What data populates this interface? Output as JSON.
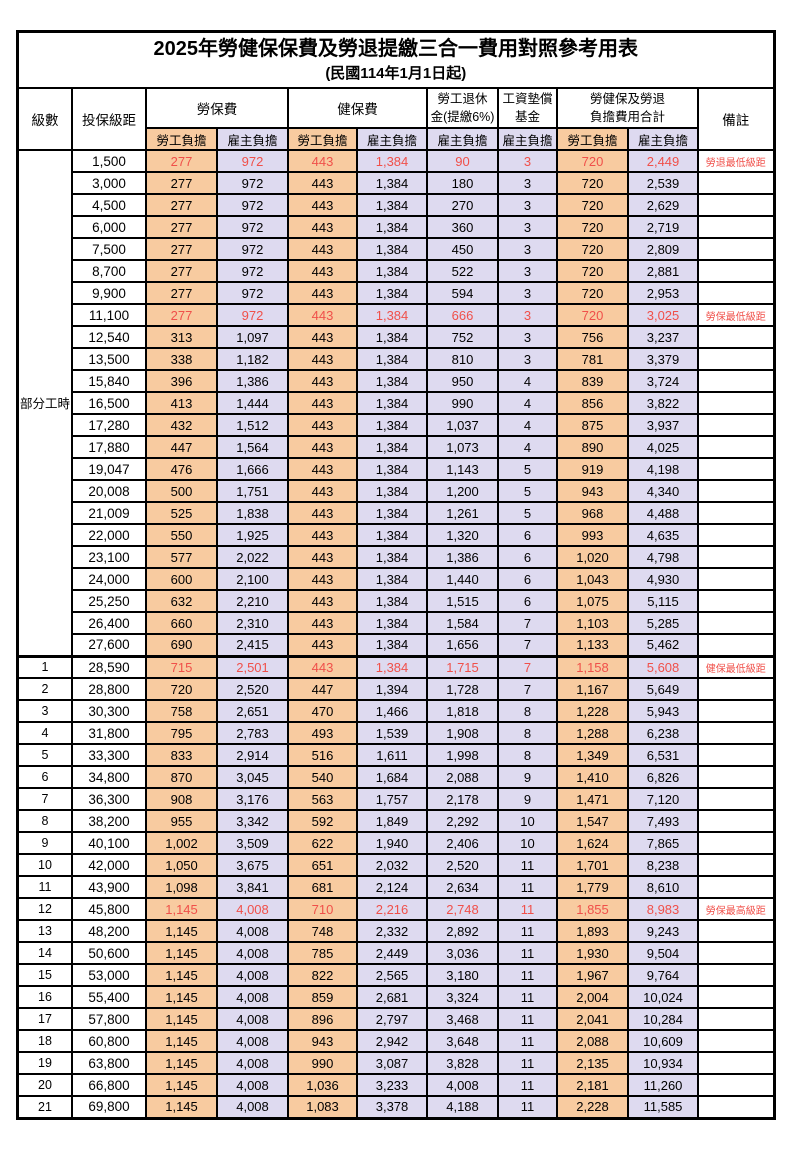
{
  "title": "2025年勞健保保費及勞退提繳三合一費用對照參考用表",
  "subtitle": "(民國114年1月1日起)",
  "colors": {
    "employee_bg": "#f8cba0",
    "employer_bg": "#dedaf0",
    "highlight_red": "#f0504a"
  },
  "header": {
    "level": "級數",
    "bracket": "投保級距",
    "labor_insurance": "勞保費",
    "health_insurance": "健保費",
    "pension_line1": "勞工退休",
    "pension_line2": "金(提繳6%)",
    "wage_fund_line1": "工資墊償",
    "wage_fund_line2": "基金",
    "total_line1": "勞健保及勞退",
    "total_line2": "負擔費用合計",
    "notes": "備註",
    "employee": "勞工負擔",
    "employer": "雇主負擔"
  },
  "part_time": {
    "label": "部分工時",
    "rowspan": 23
  },
  "row_fields": [
    "bracket",
    "li_emp",
    "li_er",
    "hi_emp",
    "hi_er",
    "pension",
    "fund",
    "tot_emp",
    "tot_er",
    "note"
  ],
  "field_classes": {
    "bracket": "bracket",
    "li_emp": "emp val",
    "li_er": "er val",
    "hi_emp": "emp val",
    "hi_er": "er val",
    "pension": "er val",
    "fund": "er val",
    "tot_emp": "emp val",
    "tot_er": "er val",
    "note": "note"
  },
  "rows": [
    {
      "level": "",
      "bracket": "1,500",
      "li_emp": "277",
      "li_er": "972",
      "hi_emp": "443",
      "hi_er": "1,384",
      "pension": "90",
      "fund": "3",
      "tot_emp": "720",
      "tot_er": "2,449",
      "note": "勞退最低級距",
      "red": true
    },
    {
      "level": "",
      "bracket": "3,000",
      "li_emp": "277",
      "li_er": "972",
      "hi_emp": "443",
      "hi_er": "1,384",
      "pension": "180",
      "fund": "3",
      "tot_emp": "720",
      "tot_er": "2,539",
      "note": ""
    },
    {
      "level": "",
      "bracket": "4,500",
      "li_emp": "277",
      "li_er": "972",
      "hi_emp": "443",
      "hi_er": "1,384",
      "pension": "270",
      "fund": "3",
      "tot_emp": "720",
      "tot_er": "2,629",
      "note": ""
    },
    {
      "level": "",
      "bracket": "6,000",
      "li_emp": "277",
      "li_er": "972",
      "hi_emp": "443",
      "hi_er": "1,384",
      "pension": "360",
      "fund": "3",
      "tot_emp": "720",
      "tot_er": "2,719",
      "note": ""
    },
    {
      "level": "",
      "bracket": "7,500",
      "li_emp": "277",
      "li_er": "972",
      "hi_emp": "443",
      "hi_er": "1,384",
      "pension": "450",
      "fund": "3",
      "tot_emp": "720",
      "tot_er": "2,809",
      "note": ""
    },
    {
      "level": "",
      "bracket": "8,700",
      "li_emp": "277",
      "li_er": "972",
      "hi_emp": "443",
      "hi_er": "1,384",
      "pension": "522",
      "fund": "3",
      "tot_emp": "720",
      "tot_er": "2,881",
      "note": ""
    },
    {
      "level": "",
      "bracket": "9,900",
      "li_emp": "277",
      "li_er": "972",
      "hi_emp": "443",
      "hi_er": "1,384",
      "pension": "594",
      "fund": "3",
      "tot_emp": "720",
      "tot_er": "2,953",
      "note": ""
    },
    {
      "level": "",
      "bracket": "11,100",
      "li_emp": "277",
      "li_er": "972",
      "hi_emp": "443",
      "hi_er": "1,384",
      "pension": "666",
      "fund": "3",
      "tot_emp": "720",
      "tot_er": "3,025",
      "note": "勞保最低級距",
      "red": true
    },
    {
      "level": "",
      "bracket": "12,540",
      "li_emp": "313",
      "li_er": "1,097",
      "hi_emp": "443",
      "hi_er": "1,384",
      "pension": "752",
      "fund": "3",
      "tot_emp": "756",
      "tot_er": "3,237",
      "note": ""
    },
    {
      "level": "",
      "bracket": "13,500",
      "li_emp": "338",
      "li_er": "1,182",
      "hi_emp": "443",
      "hi_er": "1,384",
      "pension": "810",
      "fund": "3",
      "tot_emp": "781",
      "tot_er": "3,379",
      "note": ""
    },
    {
      "level": "",
      "bracket": "15,840",
      "li_emp": "396",
      "li_er": "1,386",
      "hi_emp": "443",
      "hi_er": "1,384",
      "pension": "950",
      "fund": "4",
      "tot_emp": "839",
      "tot_er": "3,724",
      "note": ""
    },
    {
      "level": "",
      "bracket": "16,500",
      "li_emp": "413",
      "li_er": "1,444",
      "hi_emp": "443",
      "hi_er": "1,384",
      "pension": "990",
      "fund": "4",
      "tot_emp": "856",
      "tot_er": "3,822",
      "note": ""
    },
    {
      "level": "",
      "bracket": "17,280",
      "li_emp": "432",
      "li_er": "1,512",
      "hi_emp": "443",
      "hi_er": "1,384",
      "pension": "1,037",
      "fund": "4",
      "tot_emp": "875",
      "tot_er": "3,937",
      "note": ""
    },
    {
      "level": "",
      "bracket": "17,880",
      "li_emp": "447",
      "li_er": "1,564",
      "hi_emp": "443",
      "hi_er": "1,384",
      "pension": "1,073",
      "fund": "4",
      "tot_emp": "890",
      "tot_er": "4,025",
      "note": ""
    },
    {
      "level": "",
      "bracket": "19,047",
      "li_emp": "476",
      "li_er": "1,666",
      "hi_emp": "443",
      "hi_er": "1,384",
      "pension": "1,143",
      "fund": "5",
      "tot_emp": "919",
      "tot_er": "4,198",
      "note": ""
    },
    {
      "level": "",
      "bracket": "20,008",
      "li_emp": "500",
      "li_er": "1,751",
      "hi_emp": "443",
      "hi_er": "1,384",
      "pension": "1,200",
      "fund": "5",
      "tot_emp": "943",
      "tot_er": "4,340",
      "note": ""
    },
    {
      "level": "",
      "bracket": "21,009",
      "li_emp": "525",
      "li_er": "1,838",
      "hi_emp": "443",
      "hi_er": "1,384",
      "pension": "1,261",
      "fund": "5",
      "tot_emp": "968",
      "tot_er": "4,488",
      "note": ""
    },
    {
      "level": "",
      "bracket": "22,000",
      "li_emp": "550",
      "li_er": "1,925",
      "hi_emp": "443",
      "hi_er": "1,384",
      "pension": "1,320",
      "fund": "6",
      "tot_emp": "993",
      "tot_er": "4,635",
      "note": ""
    },
    {
      "level": "",
      "bracket": "23,100",
      "li_emp": "577",
      "li_er": "2,022",
      "hi_emp": "443",
      "hi_er": "1,384",
      "pension": "1,386",
      "fund": "6",
      "tot_emp": "1,020",
      "tot_er": "4,798",
      "note": ""
    },
    {
      "level": "",
      "bracket": "24,000",
      "li_emp": "600",
      "li_er": "2,100",
      "hi_emp": "443",
      "hi_er": "1,384",
      "pension": "1,440",
      "fund": "6",
      "tot_emp": "1,043",
      "tot_er": "4,930",
      "note": ""
    },
    {
      "level": "",
      "bracket": "25,250",
      "li_emp": "632",
      "li_er": "2,210",
      "hi_emp": "443",
      "hi_er": "1,384",
      "pension": "1,515",
      "fund": "6",
      "tot_emp": "1,075",
      "tot_er": "5,115",
      "note": ""
    },
    {
      "level": "",
      "bracket": "26,400",
      "li_emp": "660",
      "li_er": "2,310",
      "hi_emp": "443",
      "hi_er": "1,384",
      "pension": "1,584",
      "fund": "7",
      "tot_emp": "1,103",
      "tot_er": "5,285",
      "note": ""
    },
    {
      "level": "",
      "bracket": "27,600",
      "li_emp": "690",
      "li_er": "2,415",
      "hi_emp": "443",
      "hi_er": "1,384",
      "pension": "1,656",
      "fund": "7",
      "tot_emp": "1,133",
      "tot_er": "5,462",
      "note": ""
    },
    {
      "level": "1",
      "bracket": "28,590",
      "li_emp": "715",
      "li_er": "2,501",
      "hi_emp": "443",
      "hi_er": "1,384",
      "pension": "1,715",
      "fund": "7",
      "tot_emp": "1,158",
      "tot_er": "5,608",
      "note": "健保最低級距",
      "red": true,
      "sep": true
    },
    {
      "level": "2",
      "bracket": "28,800",
      "li_emp": "720",
      "li_er": "2,520",
      "hi_emp": "447",
      "hi_er": "1,394",
      "pension": "1,728",
      "fund": "7",
      "tot_emp": "1,167",
      "tot_er": "5,649",
      "note": ""
    },
    {
      "level": "3",
      "bracket": "30,300",
      "li_emp": "758",
      "li_er": "2,651",
      "hi_emp": "470",
      "hi_er": "1,466",
      "pension": "1,818",
      "fund": "8",
      "tot_emp": "1,228",
      "tot_er": "5,943",
      "note": ""
    },
    {
      "level": "4",
      "bracket": "31,800",
      "li_emp": "795",
      "li_er": "2,783",
      "hi_emp": "493",
      "hi_er": "1,539",
      "pension": "1,908",
      "fund": "8",
      "tot_emp": "1,288",
      "tot_er": "6,238",
      "note": ""
    },
    {
      "level": "5",
      "bracket": "33,300",
      "li_emp": "833",
      "li_er": "2,914",
      "hi_emp": "516",
      "hi_er": "1,611",
      "pension": "1,998",
      "fund": "8",
      "tot_emp": "1,349",
      "tot_er": "6,531",
      "note": ""
    },
    {
      "level": "6",
      "bracket": "34,800",
      "li_emp": "870",
      "li_er": "3,045",
      "hi_emp": "540",
      "hi_er": "1,684",
      "pension": "2,088",
      "fund": "9",
      "tot_emp": "1,410",
      "tot_er": "6,826",
      "note": ""
    },
    {
      "level": "7",
      "bracket": "36,300",
      "li_emp": "908",
      "li_er": "3,176",
      "hi_emp": "563",
      "hi_er": "1,757",
      "pension": "2,178",
      "fund": "9",
      "tot_emp": "1,471",
      "tot_er": "7,120",
      "note": ""
    },
    {
      "level": "8",
      "bracket": "38,200",
      "li_emp": "955",
      "li_er": "3,342",
      "hi_emp": "592",
      "hi_er": "1,849",
      "pension": "2,292",
      "fund": "10",
      "tot_emp": "1,547",
      "tot_er": "7,493",
      "note": ""
    },
    {
      "level": "9",
      "bracket": "40,100",
      "li_emp": "1,002",
      "li_er": "3,509",
      "hi_emp": "622",
      "hi_er": "1,940",
      "pension": "2,406",
      "fund": "10",
      "tot_emp": "1,624",
      "tot_er": "7,865",
      "note": ""
    },
    {
      "level": "10",
      "bracket": "42,000",
      "li_emp": "1,050",
      "li_er": "3,675",
      "hi_emp": "651",
      "hi_er": "2,032",
      "pension": "2,520",
      "fund": "11",
      "tot_emp": "1,701",
      "tot_er": "8,238",
      "note": ""
    },
    {
      "level": "11",
      "bracket": "43,900",
      "li_emp": "1,098",
      "li_er": "3,841",
      "hi_emp": "681",
      "hi_er": "2,124",
      "pension": "2,634",
      "fund": "11",
      "tot_emp": "1,779",
      "tot_er": "8,610",
      "note": ""
    },
    {
      "level": "12",
      "bracket": "45,800",
      "li_emp": "1,145",
      "li_er": "4,008",
      "hi_emp": "710",
      "hi_er": "2,216",
      "pension": "2,748",
      "fund": "11",
      "tot_emp": "1,855",
      "tot_er": "8,983",
      "note": "勞保最高級距",
      "red": true
    },
    {
      "level": "13",
      "bracket": "48,200",
      "li_emp": "1,145",
      "li_er": "4,008",
      "hi_emp": "748",
      "hi_er": "2,332",
      "pension": "2,892",
      "fund": "11",
      "tot_emp": "1,893",
      "tot_er": "9,243",
      "note": ""
    },
    {
      "level": "14",
      "bracket": "50,600",
      "li_emp": "1,145",
      "li_er": "4,008",
      "hi_emp": "785",
      "hi_er": "2,449",
      "pension": "3,036",
      "fund": "11",
      "tot_emp": "1,930",
      "tot_er": "9,504",
      "note": ""
    },
    {
      "level": "15",
      "bracket": "53,000",
      "li_emp": "1,145",
      "li_er": "4,008",
      "hi_emp": "822",
      "hi_er": "2,565",
      "pension": "3,180",
      "fund": "11",
      "tot_emp": "1,967",
      "tot_er": "9,764",
      "note": ""
    },
    {
      "level": "16",
      "bracket": "55,400",
      "li_emp": "1,145",
      "li_er": "4,008",
      "hi_emp": "859",
      "hi_er": "2,681",
      "pension": "3,324",
      "fund": "11",
      "tot_emp": "2,004",
      "tot_er": "10,024",
      "note": ""
    },
    {
      "level": "17",
      "bracket": "57,800",
      "li_emp": "1,145",
      "li_er": "4,008",
      "hi_emp": "896",
      "hi_er": "2,797",
      "pension": "3,468",
      "fund": "11",
      "tot_emp": "2,041",
      "tot_er": "10,284",
      "note": ""
    },
    {
      "level": "18",
      "bracket": "60,800",
      "li_emp": "1,145",
      "li_er": "4,008",
      "hi_emp": "943",
      "hi_er": "2,942",
      "pension": "3,648",
      "fund": "11",
      "tot_emp": "2,088",
      "tot_er": "10,609",
      "note": ""
    },
    {
      "level": "19",
      "bracket": "63,800",
      "li_emp": "1,145",
      "li_er": "4,008",
      "hi_emp": "990",
      "hi_er": "3,087",
      "pension": "3,828",
      "fund": "11",
      "tot_emp": "2,135",
      "tot_er": "10,934",
      "note": ""
    },
    {
      "level": "20",
      "bracket": "66,800",
      "li_emp": "1,145",
      "li_er": "4,008",
      "hi_emp": "1,036",
      "hi_er": "3,233",
      "pension": "4,008",
      "fund": "11",
      "tot_emp": "2,181",
      "tot_er": "11,260",
      "note": ""
    },
    {
      "level": "21",
      "bracket": "69,800",
      "li_emp": "1,145",
      "li_er": "4,008",
      "hi_emp": "1,083",
      "hi_er": "3,378",
      "pension": "4,188",
      "fund": "11",
      "tot_emp": "2,228",
      "tot_er": "11,585",
      "note": ""
    }
  ]
}
